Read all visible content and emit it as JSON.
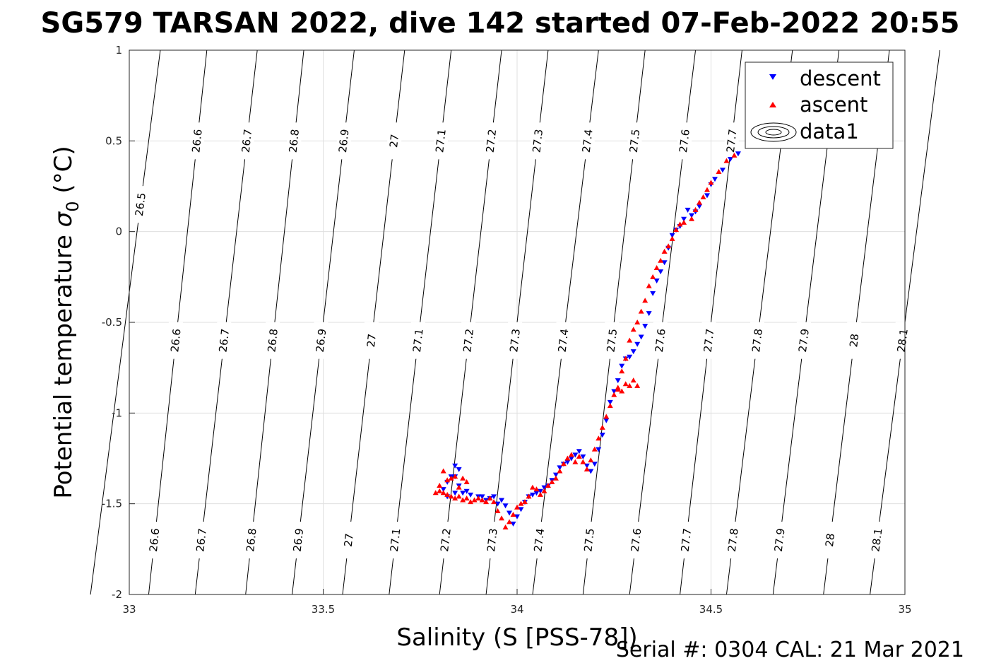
{
  "chart_data": {
    "type": "scatter",
    "title": "SG579 TARSAN 2022, dive 142 started 07-Feb-2022 20:55",
    "xlabel": "Salinity (S [PSS-78])",
    "ylabel_main": "Potential temperature ",
    "ylabel_sym": "σ",
    "ylabel_sub": "0",
    "ylabel_unit": " (°C)",
    "footer": "Serial #: 0304  CAL: 21 Mar 2021",
    "xlim": [
      33,
      35
    ],
    "ylim": [
      -2,
      1
    ],
    "xticks": [
      "33",
      "33.5",
      "34",
      "34.5",
      "35"
    ],
    "yticks": [
      "-2",
      "-1.5",
      "-1",
      "-0.5",
      "0",
      "0.5",
      "1"
    ],
    "grid": true,
    "legend_position": "top-right",
    "legend": [
      "descent",
      "ascent",
      "data1"
    ],
    "contours": {
      "levels": [
        26.5,
        26.6,
        26.7,
        26.8,
        26.9,
        27,
        27.1,
        27.2,
        27.3,
        27.4,
        27.5,
        27.6,
        27.7,
        27.8,
        27.9,
        28,
        28.1
      ],
      "label_text": [
        "26.5",
        "26.6",
        "26.7",
        "26.8",
        "26.9",
        "27",
        "27.1",
        "27.2",
        "27.3",
        "27.4",
        "27.5",
        "27.6",
        "27.7",
        "27.8",
        "27.9",
        "28",
        "28.1"
      ],
      "salinity_at_-2": [
        32.9,
        33.05,
        33.17,
        33.3,
        33.42,
        33.55,
        33.67,
        33.8,
        33.92,
        34.04,
        34.17,
        34.29,
        34.42,
        34.54,
        34.66,
        34.79,
        34.91
      ],
      "salinity_at_1": [
        33.08,
        33.2,
        33.33,
        33.45,
        33.58,
        33.71,
        33.83,
        33.96,
        34.08,
        34.21,
        34.33,
        34.46,
        34.58,
        34.71,
        34.83,
        34.96,
        35.09
      ],
      "label_temps": [
        -1.7,
        -0.6,
        0.5
      ],
      "label_levels": [
        [
          "26.6",
          "26.7",
          "26.8",
          "26.9",
          "27",
          "27.1",
          "27.2",
          "27.3",
          "27.4",
          "27.5",
          "27.6",
          "27.7",
          "27.8",
          "27.9",
          "28",
          "28.1"
        ],
        [
          "26.6",
          "26.7",
          "26.8",
          "26.9",
          "27",
          "27.1",
          "27.2",
          "27.3",
          "27.4",
          "27.5",
          "27.6",
          "27.7",
          "27.8",
          "27.9",
          "28",
          "28.1"
        ],
        [
          "26.6",
          "26.7",
          "26.8",
          "26.9",
          "27",
          "27.1",
          "27.2",
          "27.3",
          "27.4",
          "27.5",
          "27.6",
          "27.7"
        ]
      ],
      "extra_label": {
        "level": "26.5",
        "temp": 0.15
      }
    },
    "series": [
      {
        "name": "descent",
        "color": "#0000ff",
        "marker": "triangle-down",
        "x": [
          34.57,
          34.55,
          34.53,
          34.51,
          34.5,
          34.49,
          34.47,
          34.46,
          34.45,
          34.44,
          34.43,
          34.42,
          34.41,
          34.4,
          34.39,
          34.38,
          34.37,
          34.36,
          34.35,
          34.34,
          34.33,
          34.32,
          34.31,
          34.3,
          34.29,
          34.28,
          34.27,
          34.26,
          34.25,
          34.24,
          34.23,
          34.22,
          34.21,
          34.2,
          34.19,
          34.18,
          34.17,
          34.16,
          34.15,
          34.14,
          34.13,
          34.12,
          34.11,
          34.1,
          34.09,
          34.08,
          34.07,
          34.06,
          34.05,
          34.04,
          34.03,
          34.02,
          34.01,
          34.0,
          33.99,
          33.98,
          33.97,
          33.96,
          33.95,
          33.94,
          33.93,
          33.92,
          33.91,
          33.9,
          33.88,
          33.86,
          33.84,
          33.82,
          33.81,
          33.82,
          33.84,
          33.85,
          33.84,
          33.83,
          33.85,
          33.87
        ],
        "y": [
          0.43,
          0.4,
          0.34,
          0.29,
          0.26,
          0.2,
          0.14,
          0.11,
          0.09,
          0.12,
          0.07,
          0.03,
          0.01,
          -0.02,
          -0.09,
          -0.17,
          -0.22,
          -0.27,
          -0.34,
          -0.45,
          -0.52,
          -0.58,
          -0.62,
          -0.66,
          -0.69,
          -0.7,
          -0.74,
          -0.82,
          -0.88,
          -0.94,
          -1.04,
          -1.12,
          -1.2,
          -1.28,
          -1.32,
          -1.29,
          -1.24,
          -1.21,
          -1.23,
          -1.25,
          -1.27,
          -1.28,
          -1.3,
          -1.34,
          -1.37,
          -1.4,
          -1.41,
          -1.43,
          -1.44,
          -1.45,
          -1.46,
          -1.49,
          -1.53,
          -1.57,
          -1.61,
          -1.55,
          -1.51,
          -1.48,
          -1.5,
          -1.46,
          -1.47,
          -1.48,
          -1.46,
          -1.46,
          -1.45,
          -1.44,
          -1.44,
          -1.46,
          -1.42,
          -1.38,
          -1.35,
          -1.31,
          -1.29,
          -1.35,
          -1.4,
          -1.43
        ]
      },
      {
        "name": "ascent",
        "color": "#ff0000",
        "marker": "triangle-up",
        "x": [
          34.56,
          34.54,
          34.52,
          34.5,
          34.49,
          34.48,
          34.47,
          34.46,
          34.45,
          34.43,
          34.42,
          34.41,
          34.4,
          34.39,
          34.38,
          34.37,
          34.36,
          34.35,
          34.34,
          34.33,
          34.32,
          34.31,
          34.3,
          34.29,
          34.28,
          34.27,
          34.26,
          34.27,
          34.29,
          34.31,
          34.3,
          34.28,
          34.26,
          34.25,
          34.24,
          34.23,
          34.22,
          34.21,
          34.2,
          34.19,
          34.18,
          34.17,
          34.16,
          34.15,
          34.14,
          34.13,
          34.12,
          34.11,
          34.1,
          34.09,
          34.08,
          34.07,
          34.06,
          34.05,
          34.04,
          34.03,
          34.02,
          34.01,
          34.0,
          33.99,
          33.98,
          33.97,
          33.96,
          33.95,
          33.94,
          33.93,
          33.92,
          33.91,
          33.9,
          33.89,
          33.88,
          33.87,
          33.86,
          33.85,
          33.84,
          33.83,
          33.82,
          33.81,
          33.8,
          33.79,
          33.8,
          33.82,
          33.84,
          33.86,
          33.87,
          33.85,
          33.83,
          33.81
        ],
        "y": [
          0.42,
          0.39,
          0.33,
          0.27,
          0.23,
          0.19,
          0.16,
          0.12,
          0.07,
          0.05,
          0.04,
          0.01,
          -0.04,
          -0.08,
          -0.11,
          -0.16,
          -0.2,
          -0.25,
          -0.3,
          -0.38,
          -0.44,
          -0.5,
          -0.54,
          -0.6,
          -0.7,
          -0.77,
          -0.86,
          -0.88,
          -0.85,
          -0.85,
          -0.82,
          -0.84,
          -0.87,
          -0.9,
          -0.96,
          -1.02,
          -1.08,
          -1.14,
          -1.2,
          -1.26,
          -1.31,
          -1.27,
          -1.24,
          -1.27,
          -1.23,
          -1.25,
          -1.28,
          -1.32,
          -1.36,
          -1.38,
          -1.4,
          -1.43,
          -1.45,
          -1.42,
          -1.41,
          -1.46,
          -1.49,
          -1.5,
          -1.52,
          -1.56,
          -1.6,
          -1.63,
          -1.58,
          -1.54,
          -1.49,
          -1.47,
          -1.49,
          -1.48,
          -1.47,
          -1.48,
          -1.49,
          -1.47,
          -1.48,
          -1.46,
          -1.47,
          -1.46,
          -1.45,
          -1.44,
          -1.43,
          -1.44,
          -1.4,
          -1.37,
          -1.35,
          -1.36,
          -1.38,
          -1.41,
          -1.36,
          -1.32
        ]
      }
    ]
  }
}
